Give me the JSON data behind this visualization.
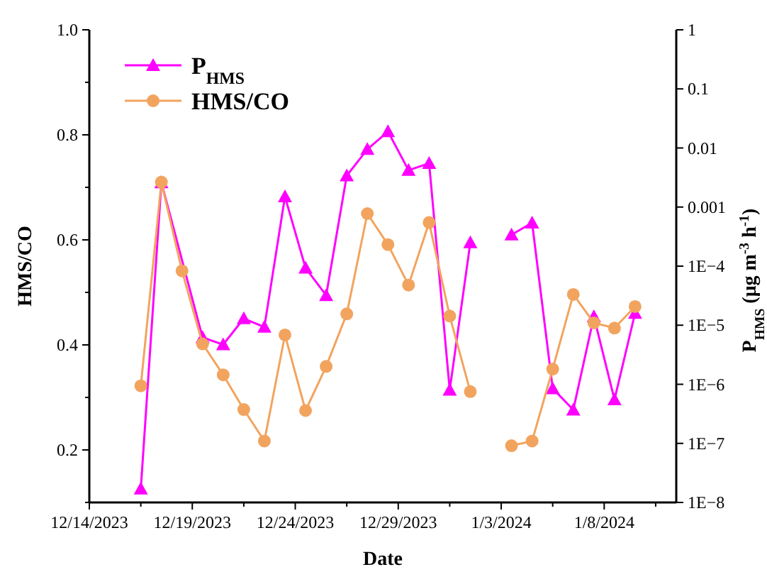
{
  "chart_data": {
    "type": "line",
    "xlabel": "Date",
    "ylabel": "HMS/CO",
    "y2label": "P$_{HMS}$ (μg m$^{-3}$ h$^{-1}$)",
    "x": [
      "2023-12-16T12:00",
      "2023-12-17T12:00",
      "2023-12-18T12:00",
      "2023-12-19T12:00",
      "2023-12-20T12:00",
      "2023-12-21T12:00",
      "2023-12-22T12:00",
      "2023-12-23T12:00",
      "2023-12-24T12:00",
      "2023-12-25T12:00",
      "2023-12-26T12:00",
      "2023-12-27T12:00",
      "2023-12-28T12:00",
      "2023-12-29T12:00",
      "2023-12-30T12:00",
      "2023-12-31T12:00",
      "2024-01-01T12:00",
      "2024-01-02T12:00",
      "2024-01-03T12:00",
      "2024-01-04T12:00",
      "2024-01-05T12:00",
      "2024-01-06T12:00",
      "2024-01-07T12:00",
      "2024-01-08T12:00",
      "2024-01-09T12:00"
    ],
    "series": [
      {
        "name": "P$_{HMS}$",
        "color": "#ff00ff",
        "axis": "y2",
        "marker": "triangle",
        "x": [
          "2023-12-16T12:00",
          "2023-12-17T12:00",
          "2023-12-19T12:00",
          "2023-12-20T12:00",
          "2023-12-21T12:00",
          "2023-12-22T12:00",
          "2023-12-23T12:00",
          "2023-12-24T12:00",
          "2023-12-25T12:00",
          "2023-12-26T12:00",
          "2023-12-27T12:00",
          "2023-12-28T12:00",
          "2023-12-29T12:00",
          "2023-12-30T12:00",
          "2023-12-31T12:00",
          "2024-01-01T12:00",
          "2024-01-02T12:00",
          "2024-01-03T12:00",
          "2024-01-04T12:00",
          "2024-01-05T12:00",
          "2024-01-06T12:00",
          "2024-01-07T12:00",
          "2024-01-08T12:00",
          "2024-01-09T12:00"
        ],
        "values": [
          1.7e-08,
          0.0026,
          6.2e-06,
          4.7e-06,
          1.3e-05,
          9.3e-06,
          0.0015,
          9.3e-05,
          3.2e-05,
          0.0034,
          0.0095,
          0.019,
          0.0042,
          0.0055,
          8e-07,
          0.00025,
          null,
          0.00034,
          0.00054,
          8.5e-07,
          3.7e-07,
          1.4e-05,
          5.5e-07,
          1.6e-05
        ]
      },
      {
        "name": "HMS/CO",
        "color": "#f2a45f",
        "marker": "circle",
        "values": [
          0.322,
          0.71,
          0.541,
          0.402,
          0.343,
          0.277,
          0.217,
          0.419,
          0.275,
          0.359,
          0.459,
          0.65,
          0.591,
          0.514,
          0.633,
          0.455,
          0.311,
          null,
          0.208,
          0.217,
          0.354,
          0.496,
          0.442,
          0.432,
          0.473
        ]
      }
    ],
    "xlim": [
      "2023-12-14",
      "2024-01-11T12:00"
    ],
    "xticks": [
      {
        "value": "2023-12-14",
        "label": "12/14/2023"
      },
      {
        "value": "2023-12-16T12:00",
        "label": null
      },
      {
        "value": "2023-12-19",
        "label": "12/19/2023"
      },
      {
        "value": "2023-12-21T12:00",
        "label": null
      },
      {
        "value": "2023-12-24",
        "label": "12/24/2023"
      },
      {
        "value": "2023-12-26T12:00",
        "label": null
      },
      {
        "value": "2023-12-29",
        "label": "12/29/2023"
      },
      {
        "value": "2023-12-31T12:00",
        "label": null
      },
      {
        "value": "2024-01-03",
        "label": "1/3/2024"
      },
      {
        "value": "2024-01-05T12:00",
        "label": null
      },
      {
        "value": "2024-01-08",
        "label": "1/8/2024"
      },
      {
        "value": "2024-01-10T12:00",
        "label": null
      }
    ],
    "ylim": [
      0.1,
      1.0
    ],
    "yticks": [
      {
        "value": 0.1,
        "label": null
      },
      0.2,
      {
        "value": 0.3,
        "label": null
      },
      0.4,
      {
        "value": 0.5,
        "label": null
      },
      0.6,
      {
        "value": 0.7,
        "label": null
      },
      0.8,
      {
        "value": 0.9,
        "label": null
      },
      {
        "value": 1.0,
        "label": "1.0"
      }
    ],
    "y2lim": [
      1e-08,
      1
    ],
    "y2ticks": [
      {
        "value": 1e-08,
        "label": "1E−8"
      },
      {
        "value": 1e-07,
        "label": "1E−7"
      },
      {
        "value": 1e-06,
        "label": "1E−6"
      },
      {
        "value": 1e-05,
        "label": "1E−5"
      },
      {
        "value": 0.0001,
        "label": "1E−4"
      },
      0.001,
      0.01,
      0.1,
      1
    ],
    "log": "y2",
    "grid": false,
    "legend": "top left"
  }
}
